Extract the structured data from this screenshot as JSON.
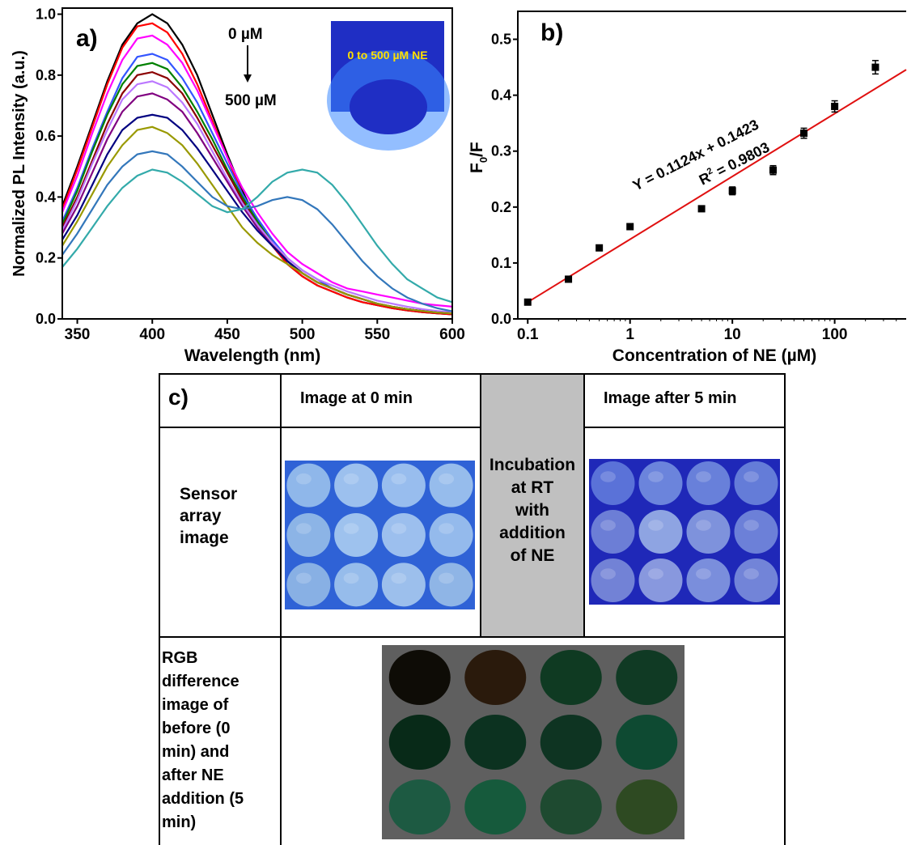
{
  "panel_a": {
    "label": "a)",
    "annotation_top": "0 µM",
    "annotation_bottom": "500 µM",
    "inset_caption": "0 to 500 µM NE"
  },
  "panel_b": {
    "label": "b)",
    "equation": "Y = 0.1124x + 0.1423",
    "r2_prefix": "R",
    "r2_sup": "2",
    "r2_value": " = 0.9803",
    "ylabel_main": "F",
    "ylabel_sub": "0",
    "ylabel_tail": "/F"
  },
  "panel_c": {
    "label": "c)",
    "header_0min": "Image at 0 min",
    "header_5min": "Image after 5 min",
    "row_sensor_label": [
      "Sensor",
      "array",
      "image"
    ],
    "incubation_text": [
      "Incubation",
      "at RT",
      "with",
      "addition",
      "of NE"
    ],
    "row_rgb_label": [
      "RGB",
      "difference",
      "image of",
      "before (0",
      "min) and",
      "after NE",
      "addition (5",
      "min)"
    ],
    "wells_0min": [
      "#8fb7ea",
      "#9cc0ee",
      "#98bdee",
      "#96bcec",
      "#8cb4e6",
      "#9ec2ee",
      "#9cbfee",
      "#94baec",
      "#88b0e4",
      "#96bceb",
      "#9cbfec",
      "#8fb5e6"
    ],
    "wells_5min": [
      "#5a72d8",
      "#6b84dc",
      "#6880da",
      "#647cd8",
      "#6c7ed6",
      "#8ea4e2",
      "#7e92dc",
      "#6c80d8",
      "#7282d6",
      "#8898de",
      "#7a8edc",
      "#7284d8"
    ],
    "wells_rgb": [
      "#0e0c06",
      "#2a1a0c",
      "#0f3a22",
      "#103a24",
      "#082a18",
      "#0c3220",
      "#0e3422",
      "#0e4a32",
      "#1d5a42",
      "#165a3c",
      "#1e4a30",
      "#2e4a22"
    ],
    "colors": {
      "panel_c_gray": "#c0c0c0",
      "fit_line": "#e01010"
    }
  },
  "chart_data": [
    {
      "type": "line",
      "title": "",
      "xlabel": "Wavelength (nm)",
      "ylabel": "Normalized PL Intensity (a.u.)",
      "xlim": [
        340,
        600
      ],
      "ylim": [
        0,
        1.02
      ],
      "xticks": [
        350,
        400,
        450,
        500,
        550,
        600
      ],
      "yticks": [
        0.0,
        0.2,
        0.4,
        0.6,
        0.8,
        1.0
      ],
      "x": [
        340,
        350,
        360,
        370,
        380,
        390,
        400,
        410,
        420,
        430,
        440,
        450,
        460,
        470,
        480,
        490,
        500,
        510,
        520,
        530,
        540,
        550,
        560,
        570,
        580,
        590,
        600
      ],
      "series": [
        {
          "color": "#000000",
          "values": [
            0.37,
            0.5,
            0.64,
            0.78,
            0.9,
            0.97,
            1.0,
            0.97,
            0.9,
            0.8,
            0.67,
            0.54,
            0.42,
            0.32,
            0.24,
            0.18,
            0.14,
            0.11,
            0.09,
            0.07,
            0.055,
            0.045,
            0.035,
            0.028,
            0.022,
            0.018,
            0.015
          ]
        },
        {
          "color": "#ff0000",
          "values": [
            0.36,
            0.49,
            0.63,
            0.77,
            0.89,
            0.96,
            0.97,
            0.94,
            0.87,
            0.77,
            0.65,
            0.53,
            0.41,
            0.32,
            0.24,
            0.18,
            0.14,
            0.11,
            0.09,
            0.07,
            0.055,
            0.045,
            0.035,
            0.028,
            0.022,
            0.018,
            0.015
          ]
        },
        {
          "color": "#ff00ff",
          "values": [
            0.35,
            0.47,
            0.61,
            0.74,
            0.85,
            0.92,
            0.93,
            0.9,
            0.84,
            0.75,
            0.64,
            0.53,
            0.43,
            0.35,
            0.28,
            0.22,
            0.18,
            0.15,
            0.12,
            0.1,
            0.09,
            0.08,
            0.07,
            0.06,
            0.05,
            0.045,
            0.04
          ]
        },
        {
          "color": "#3355ff",
          "values": [
            0.32,
            0.43,
            0.56,
            0.68,
            0.79,
            0.86,
            0.87,
            0.85,
            0.79,
            0.71,
            0.61,
            0.51,
            0.41,
            0.33,
            0.26,
            0.2,
            0.16,
            0.13,
            0.1,
            0.08,
            0.065,
            0.05,
            0.04,
            0.032,
            0.026,
            0.021,
            0.018
          ]
        },
        {
          "color": "#008000",
          "values": [
            0.31,
            0.42,
            0.55,
            0.67,
            0.77,
            0.83,
            0.84,
            0.82,
            0.76,
            0.68,
            0.59,
            0.49,
            0.4,
            0.32,
            0.25,
            0.19,
            0.15,
            0.12,
            0.1,
            0.08,
            0.065,
            0.05,
            0.04,
            0.032,
            0.026,
            0.021,
            0.018
          ]
        },
        {
          "color": "#8b0000",
          "values": [
            0.3,
            0.4,
            0.52,
            0.64,
            0.74,
            0.8,
            0.81,
            0.79,
            0.74,
            0.66,
            0.57,
            0.48,
            0.39,
            0.31,
            0.25,
            0.19,
            0.15,
            0.12,
            0.1,
            0.08,
            0.065,
            0.05,
            0.04,
            0.032,
            0.026,
            0.021,
            0.018
          ]
        },
        {
          "color": "#bb77ff",
          "values": [
            0.29,
            0.39,
            0.51,
            0.62,
            0.72,
            0.77,
            0.78,
            0.76,
            0.71,
            0.64,
            0.55,
            0.46,
            0.38,
            0.31,
            0.25,
            0.2,
            0.16,
            0.13,
            0.11,
            0.09,
            0.075,
            0.06,
            0.05,
            0.04,
            0.032,
            0.026,
            0.022
          ]
        },
        {
          "color": "#800080",
          "values": [
            0.28,
            0.37,
            0.48,
            0.59,
            0.68,
            0.73,
            0.74,
            0.72,
            0.68,
            0.61,
            0.53,
            0.45,
            0.37,
            0.3,
            0.24,
            0.19,
            0.15,
            0.12,
            0.1,
            0.08,
            0.065,
            0.05,
            0.04,
            0.032,
            0.026,
            0.021,
            0.018
          ]
        },
        {
          "color": "#000080",
          "values": [
            0.26,
            0.34,
            0.44,
            0.54,
            0.62,
            0.66,
            0.67,
            0.66,
            0.62,
            0.56,
            0.49,
            0.42,
            0.35,
            0.29,
            0.24,
            0.19,
            0.15,
            0.12,
            0.1,
            0.08,
            0.065,
            0.05,
            0.04,
            0.032,
            0.026,
            0.021,
            0.018
          ]
        },
        {
          "color": "#999900",
          "values": [
            0.24,
            0.32,
            0.41,
            0.5,
            0.57,
            0.62,
            0.63,
            0.61,
            0.57,
            0.51,
            0.44,
            0.37,
            0.3,
            0.25,
            0.21,
            0.18,
            0.15,
            0.12,
            0.1,
            0.08,
            0.065,
            0.05,
            0.04,
            0.032,
            0.026,
            0.021,
            0.018
          ]
        },
        {
          "color": "#3377bb",
          "values": [
            0.21,
            0.28,
            0.36,
            0.44,
            0.5,
            0.54,
            0.55,
            0.54,
            0.5,
            0.45,
            0.4,
            0.37,
            0.36,
            0.37,
            0.39,
            0.4,
            0.39,
            0.36,
            0.31,
            0.25,
            0.19,
            0.14,
            0.1,
            0.07,
            0.05,
            0.035,
            0.025
          ]
        },
        {
          "color": "#33aaaa",
          "values": [
            0.17,
            0.23,
            0.3,
            0.37,
            0.43,
            0.47,
            0.49,
            0.48,
            0.45,
            0.41,
            0.37,
            0.35,
            0.36,
            0.4,
            0.45,
            0.48,
            0.49,
            0.48,
            0.44,
            0.38,
            0.31,
            0.24,
            0.18,
            0.13,
            0.1,
            0.07,
            0.055
          ]
        }
      ]
    },
    {
      "type": "scatter",
      "title": "",
      "xlabel": "Concentration of NE (µM)",
      "ylabel": "F0/F",
      "xscale": "log",
      "xlim": [
        0.08,
        500
      ],
      "ylim": [
        0,
        0.55
      ],
      "xticks": [
        0.1,
        1,
        10,
        100
      ],
      "xtick_labels": [
        "0.1",
        "1",
        "10",
        "100"
      ],
      "yticks": [
        0.0,
        0.1,
        0.2,
        0.3,
        0.4,
        0.5
      ],
      "points": [
        {
          "x": 0.1,
          "y": 0.03,
          "err": 0.003
        },
        {
          "x": 0.25,
          "y": 0.071,
          "err": 0.004
        },
        {
          "x": 0.5,
          "y": 0.127,
          "err": 0.004
        },
        {
          "x": 1,
          "y": 0.165,
          "err": 0.005
        },
        {
          "x": 5,
          "y": 0.197,
          "err": 0.005
        },
        {
          "x": 10,
          "y": 0.229,
          "err": 0.007
        },
        {
          "x": 25,
          "y": 0.266,
          "err": 0.008
        },
        {
          "x": 50,
          "y": 0.332,
          "err": 0.009
        },
        {
          "x": 100,
          "y": 0.38,
          "err": 0.01
        },
        {
          "x": 250,
          "y": 0.45,
          "err": 0.012
        }
      ],
      "fit": {
        "slope": 0.1124,
        "intercept": 0.1423
      }
    }
  ]
}
